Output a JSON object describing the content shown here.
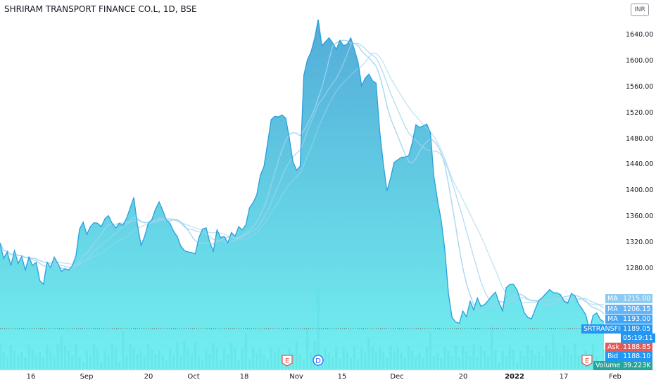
{
  "header": {
    "title": "SHRIRAM TRANSPORT FINANCE CO.L, 1D, BSE",
    "currency": "INR"
  },
  "colors": {
    "price_line": "#2a9fdc",
    "ma_line": "#9fd3ef",
    "area_top": "#4aa7d6",
    "area_bottom": "#6cf0ef",
    "volume": "#5ee0e8",
    "tag_blue": "#2196f3",
    "ask_red": "#e05b5b",
    "volume_green": "#26a69a"
  },
  "chart_data": {
    "type": "area",
    "title": "SHRIRAM TRANSPORT FINANCE CO.L, 1D, BSE",
    "x_ticks": [
      "16",
      "Sep",
      "20",
      "Oct",
      "18",
      "Nov",
      "15",
      "Dec",
      "20",
      "2022",
      "17",
      "Feb"
    ],
    "y_ticks": [
      1280,
      1320,
      1360,
      1400,
      1440,
      1480,
      1520,
      1560,
      1600,
      1640
    ],
    "ylim": [
      1185,
      1670
    ],
    "grid": false,
    "price": [
      1320,
      1296,
      1306,
      1285,
      1308,
      1288,
      1299,
      1278,
      1298,
      1285,
      1290,
      1262,
      1256,
      1290,
      1282,
      1298,
      1288,
      1276,
      1280,
      1278,
      1285,
      1300,
      1341,
      1352,
      1333,
      1345,
      1351,
      1350,
      1345,
      1357,
      1362,
      1350,
      1343,
      1350,
      1347,
      1358,
      1374,
      1390,
      1348,
      1316,
      1330,
      1350,
      1356,
      1372,
      1383,
      1370,
      1355,
      1350,
      1338,
      1330,
      1315,
      1308,
      1306,
      1305,
      1303,
      1328,
      1341,
      1343,
      1321,
      1307,
      1340,
      1328,
      1330,
      1320,
      1336,
      1330,
      1345,
      1340,
      1348,
      1374,
      1382,
      1394,
      1424,
      1438,
      1474,
      1510,
      1515,
      1514,
      1517,
      1512,
      1482,
      1445,
      1432,
      1438,
      1578,
      1602,
      1614,
      1635,
      1664,
      1624,
      1630,
      1636,
      1628,
      1618,
      1632,
      1624,
      1626,
      1636,
      1618,
      1599,
      1562,
      1574,
      1580,
      1570,
      1566,
      1492,
      1442,
      1400,
      1420,
      1444,
      1448,
      1452,
      1452,
      1454,
      1474,
      1502,
      1498,
      1500,
      1503,
      1490,
      1422,
      1385,
      1355,
      1310,
      1242,
      1205,
      1198,
      1196,
      1215,
      1206,
      1230,
      1217,
      1235,
      1222,
      1225,
      1231,
      1238,
      1244,
      1228,
      1215,
      1251,
      1256,
      1256,
      1247,
      1230,
      1212,
      1205,
      1203,
      1218,
      1231,
      1236,
      1242,
      1248,
      1243,
      1243,
      1240,
      1230,
      1227,
      1242,
      1238,
      1226,
      1218,
      1209,
      1185,
      1208,
      1212,
      1202,
      1198
    ],
    "ma_series": [
      {
        "name": "MA",
        "label_value": "1215.00"
      },
      {
        "name": "MA",
        "label_value": "1206.15"
      },
      {
        "name": "MA",
        "label_value": "1193.00"
      }
    ],
    "last_price": {
      "symbol": "SRTRANSFIN",
      "value": "1189.05",
      "countdown": "05:19:11"
    },
    "ask": {
      "label": "Ask",
      "value": "1188.85"
    },
    "bid": {
      "label": "Bid",
      "value": "1188.10"
    },
    "volume": {
      "label": "Volume",
      "value": "39.223K"
    },
    "markers": [
      {
        "kind": "earnings",
        "text": "E"
      },
      {
        "kind": "dividend",
        "text": "D"
      },
      {
        "kind": "earnings",
        "text": "E"
      }
    ]
  }
}
